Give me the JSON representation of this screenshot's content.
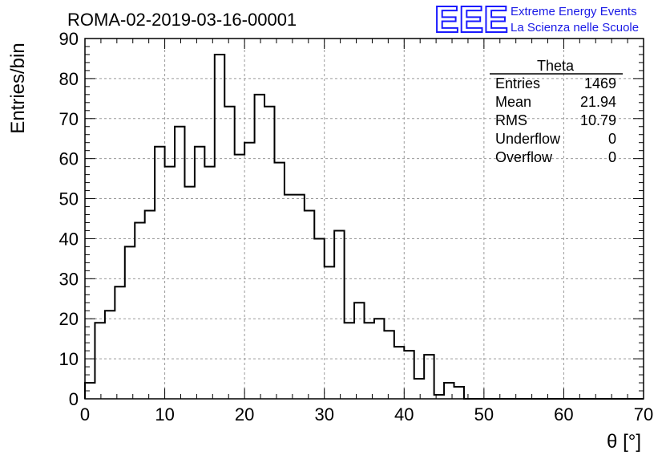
{
  "chart_data": {
    "type": "histogram",
    "title": "ROMA-02-2019-03-16-00001",
    "xlabel": "θ [°]",
    "ylabel": "Entries/bin",
    "xlim": [
      0,
      70
    ],
    "ylim": [
      0,
      90
    ],
    "x_ticks": [
      "0",
      "10",
      "20",
      "30",
      "40",
      "50",
      "60",
      "70"
    ],
    "y_ticks": [
      "0",
      "10",
      "20",
      "30",
      "40",
      "50",
      "60",
      "70",
      "80",
      "90"
    ],
    "grid": true,
    "bin_width": 1.25,
    "bin_start": 0,
    "values": [
      4,
      19,
      22,
      28,
      38,
      44,
      47,
      63,
      58,
      68,
      53,
      63,
      58,
      86,
      73,
      61,
      64,
      76,
      73,
      59,
      51,
      51,
      47,
      40,
      33,
      42,
      19,
      24,
      19,
      20,
      17,
      13,
      12,
      5,
      11,
      1,
      4,
      3,
      0,
      0,
      0,
      0,
      0,
      0,
      0,
      0,
      0,
      0,
      0,
      0,
      0,
      0,
      0,
      0,
      0,
      0
    ],
    "stats_box": {
      "name": "Theta",
      "rows": [
        {
          "label": "Entries",
          "value": "1469"
        },
        {
          "label": "Mean",
          "value": "21.94"
        },
        {
          "label": "RMS",
          "value": "10.79"
        },
        {
          "label": "Underflow",
          "value": "0"
        },
        {
          "label": "Overflow",
          "value": "0"
        }
      ]
    }
  },
  "logo": {
    "mark": "EEE",
    "line1": "Extreme Energy Events",
    "line2": "La Scienza nelle Scuole",
    "color": "#1a1aff"
  }
}
